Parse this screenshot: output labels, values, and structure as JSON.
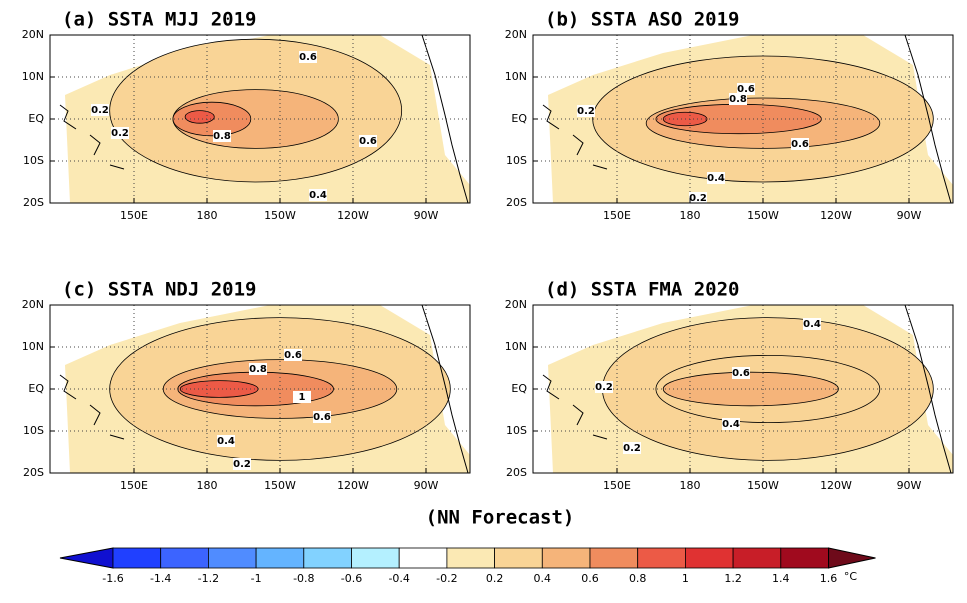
{
  "panels": [
    {
      "title": "(a) SSTA  MJJ 2019",
      "contour_labels": [
        0.6,
        0.2,
        0.2,
        0.8,
        0.6,
        0.4
      ]
    },
    {
      "title": "(b) SSTA  ASO 2019",
      "contour_labels": [
        0.2,
        0.6,
        0.8,
        0.6,
        0.4,
        0.2
      ]
    },
    {
      "title": "(c) SSTA  NDJ 2019",
      "contour_labels": [
        0.6,
        0.8,
        1,
        0.6,
        0.4,
        0.2
      ]
    },
    {
      "title": "(d) SSTA  FMA 2020",
      "contour_labels": [
        0.4,
        0.2,
        0.6,
        0.4,
        0.2
      ]
    }
  ],
  "lat_labels": [
    "20N",
    "10N",
    "EQ",
    "10S",
    "20S"
  ],
  "lon_labels": [
    "150E",
    "180",
    "150W",
    "120W",
    "90W"
  ],
  "footer": "(NN Forecast)",
  "colorbar": {
    "ticks": [
      -1.6,
      -1.4,
      -1.2,
      -1,
      -0.8,
      -0.6,
      -0.4,
      -0.2,
      0.2,
      0.4,
      0.6,
      0.8,
      1,
      1.2,
      1.4,
      1.6
    ],
    "unit": "°C",
    "colors": [
      "#1010d0",
      "#2040ff",
      "#3c64ff",
      "#508cff",
      "#64b4ff",
      "#82d2ff",
      "#b4f0ff",
      "#ffffff",
      "#fbe9b4",
      "#f9d496",
      "#f5b47a",
      "#f08c5e",
      "#ec5a46",
      "#e03232",
      "#c81e28",
      "#a00a1e"
    ]
  }
}
